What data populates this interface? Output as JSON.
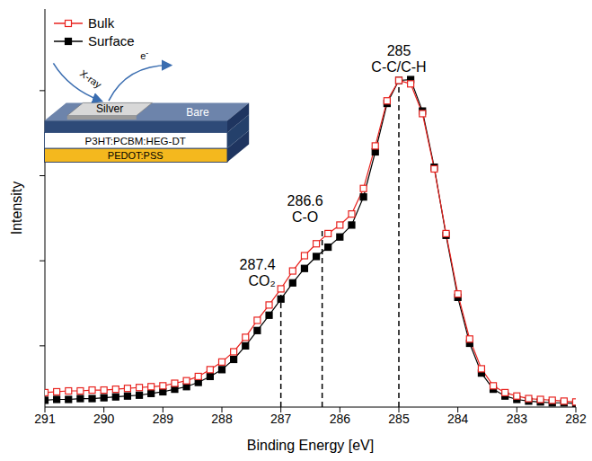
{
  "chart_data": {
    "type": "line",
    "x_label": "Binding Energy [eV]",
    "y_label": "Intensity",
    "xlim": [
      291,
      282
    ],
    "xticks": [
      291,
      290,
      289,
      288,
      287,
      286,
      285,
      284,
      283,
      282
    ],
    "ylim": [
      0.28,
      4.96
    ],
    "yticks": [
      1,
      2,
      3,
      4
    ],
    "tick_labels": "x",
    "grid": false,
    "legend": "upper left",
    "x": [
      291,
      290.8,
      290.6,
      290.4,
      290.2,
      290,
      289.8,
      289.6,
      289.4,
      289.2,
      289,
      288.8,
      288.6,
      288.4,
      288.2,
      288,
      287.8,
      287.6,
      287.4,
      287.2,
      287,
      286.8,
      286.6,
      286.4,
      286.2,
      286,
      285.8,
      285.6,
      285.4,
      285.2,
      285,
      284.8,
      284.6,
      284.4,
      284.2,
      284,
      283.8,
      283.6,
      283.4,
      283.2,
      283,
      282.8,
      282.6,
      282.4,
      282.2,
      282
    ],
    "series": [
      {
        "name": "Surface",
        "color": "#000000",
        "marker": "square",
        "line_style": "solid",
        "values": [
          0.36,
          0.37,
          0.37,
          0.38,
          0.38,
          0.39,
          0.4,
          0.41,
          0.42,
          0.44,
          0.46,
          0.49,
          0.52,
          0.57,
          0.64,
          0.72,
          0.84,
          1.0,
          1.18,
          1.36,
          1.55,
          1.74,
          1.91,
          2.05,
          2.16,
          2.28,
          2.42,
          2.75,
          3.28,
          3.85,
          4.12,
          4.13,
          3.76,
          3.1,
          2.3,
          1.57,
          1.03,
          0.68,
          0.49,
          0.41,
          0.37,
          0.35,
          0.34,
          0.33,
          0.33,
          0.32
        ]
      },
      {
        "name": "Bulk",
        "color": "#e8231f",
        "marker": "square_open",
        "line_style": "solid",
        "values": [
          0.45,
          0.46,
          0.47,
          0.47,
          0.48,
          0.48,
          0.49,
          0.5,
          0.51,
          0.52,
          0.53,
          0.56,
          0.59,
          0.64,
          0.72,
          0.81,
          0.93,
          1.1,
          1.3,
          1.48,
          1.67,
          1.88,
          2.06,
          2.2,
          2.32,
          2.42,
          2.55,
          2.85,
          3.35,
          3.88,
          4.12,
          4.08,
          3.73,
          3.08,
          2.32,
          1.61,
          1.08,
          0.73,
          0.53,
          0.45,
          0.41,
          0.38,
          0.37,
          0.36,
          0.35,
          0.34
        ]
      }
    ],
    "annotations": [
      {
        "text": [
          "285",
          "C-C/C-H"
        ],
        "x": 285,
        "y": 4.12
      },
      {
        "text": [
          "286.6",
          "C-O"
        ],
        "x": 286.3,
        "y": 2.35
      },
      {
        "text": [
          "287.4",
          "CO₂"
        ],
        "x": 287.0,
        "y": 1.6
      }
    ],
    "inset": {
      "top_layer": "Silver",
      "bare": "Bare",
      "active_layer": "P3HT:PCBM:HEG-DT",
      "bottom_layer": "PEDOT:PSS",
      "beam_in": "X-ray",
      "beam_out": "e-"
    }
  }
}
